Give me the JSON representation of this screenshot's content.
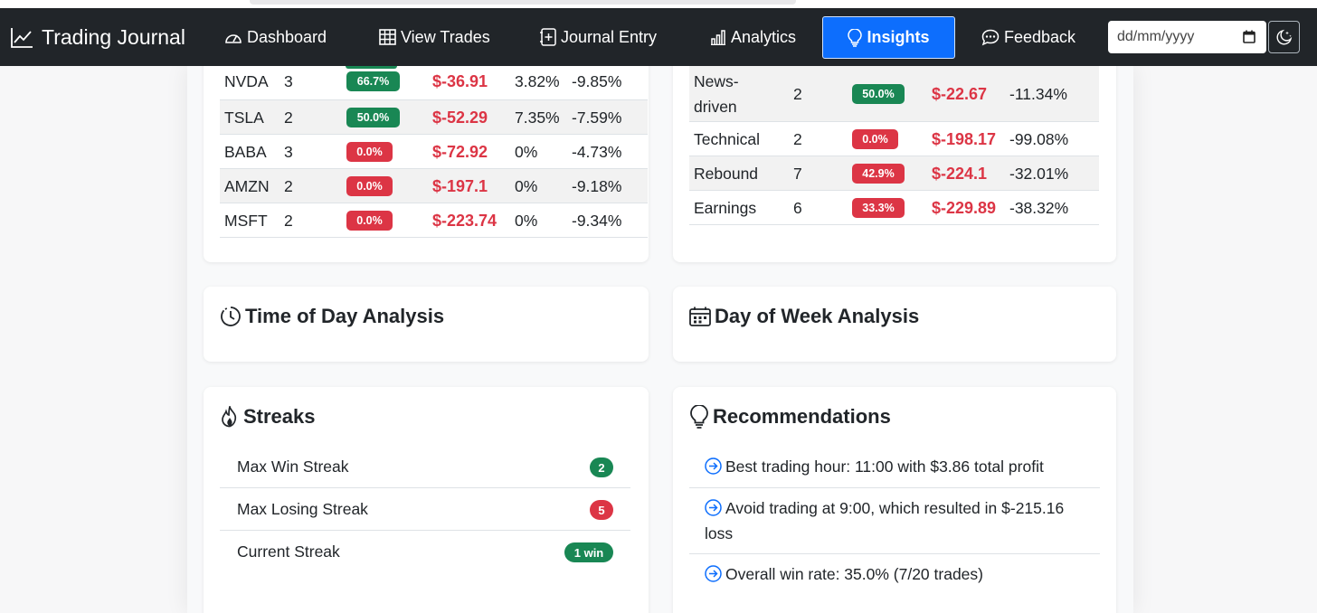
{
  "app": {
    "brand": "Trading Journal",
    "nav": [
      {
        "label": "Dashboard",
        "icon": "speedometer-icon"
      },
      {
        "label": "View Trades",
        "icon": "table-icon"
      },
      {
        "label": "Journal Entry",
        "icon": "journal-plus-icon"
      },
      {
        "label": "Analytics",
        "icon": "bar-chart-icon"
      },
      {
        "label": "Insights",
        "icon": "lightbulb-icon",
        "active": true
      },
      {
        "label": "Feedback",
        "icon": "chat-dots-icon"
      }
    ],
    "date_placeholder": "dd/mm/yyyy",
    "theme_icon": "moon-stars-icon",
    "accent": "#0d6efd",
    "navbar_color": "#212529"
  },
  "symbol_table": {
    "rows": [
      {
        "symbol": "NVDA",
        "trades": "3",
        "win_rate": "66.7%",
        "win_color": "green",
        "pnl": "$-36.91",
        "avg_win": "3.82%",
        "avg_loss": "-9.85%"
      },
      {
        "symbol": "TSLA",
        "trades": "2",
        "win_rate": "50.0%",
        "win_color": "green",
        "pnl": "$-52.29",
        "avg_win": "7.35%",
        "avg_loss": "-7.59%"
      },
      {
        "symbol": "BABA",
        "trades": "3",
        "win_rate": "0.0%",
        "win_color": "red",
        "pnl": "$-72.92",
        "avg_win": "0%",
        "avg_loss": "-4.73%"
      },
      {
        "symbol": "AMZN",
        "trades": "2",
        "win_rate": "0.0%",
        "win_color": "red",
        "pnl": "$-197.1",
        "avg_win": "0%",
        "avg_loss": "-9.18%"
      },
      {
        "symbol": "MSFT",
        "trades": "2",
        "win_rate": "0.0%",
        "win_color": "red",
        "pnl": "$-223.74",
        "avg_win": "0%",
        "avg_loss": "-9.34%"
      }
    ]
  },
  "strategy_table": {
    "rows": [
      {
        "strategy": "News-\ndriven",
        "trades": "2",
        "win_rate": "50.0%",
        "win_color": "green",
        "pnl": "$-22.67",
        "return": "-11.34%"
      },
      {
        "strategy": "Technical",
        "trades": "2",
        "win_rate": "0.0%",
        "win_color": "red",
        "pnl": "$-198.17",
        "return": "-99.08%"
      },
      {
        "strategy": "Rebound",
        "trades": "7",
        "win_rate": "42.9%",
        "win_color": "red",
        "pnl": "$-224.1",
        "return": "-32.01%"
      },
      {
        "strategy": "Earnings",
        "trades": "6",
        "win_rate": "33.3%",
        "win_color": "red",
        "pnl": "$-229.89",
        "return": "-38.32%"
      }
    ]
  },
  "time_of_day": {
    "title": "Time of Day Analysis",
    "icon": "clock-history-icon"
  },
  "day_of_week": {
    "title": "Day of Week Analysis",
    "icon": "calendar-week-icon"
  },
  "streaks": {
    "title": "Streaks",
    "icon": "fire-icon",
    "items": [
      {
        "label": "Max Win Streak",
        "value": "2",
        "color": "green"
      },
      {
        "label": "Max Losing Streak",
        "value": "5",
        "color": "red"
      },
      {
        "label": "Current Streak",
        "value": "1 win",
        "color": "green"
      }
    ]
  },
  "recommendations": {
    "title": "Recommendations",
    "icon": "lightbulb-icon",
    "items": [
      "Best trading hour: 11:00 with $3.86 total profit",
      "Avoid trading at 9:00, which resulted in $-215.16 loss",
      "Overall win rate: 35.0% (7/20 trades)"
    ]
  },
  "colors": {
    "green": "#198754",
    "red": "#dc3545"
  }
}
